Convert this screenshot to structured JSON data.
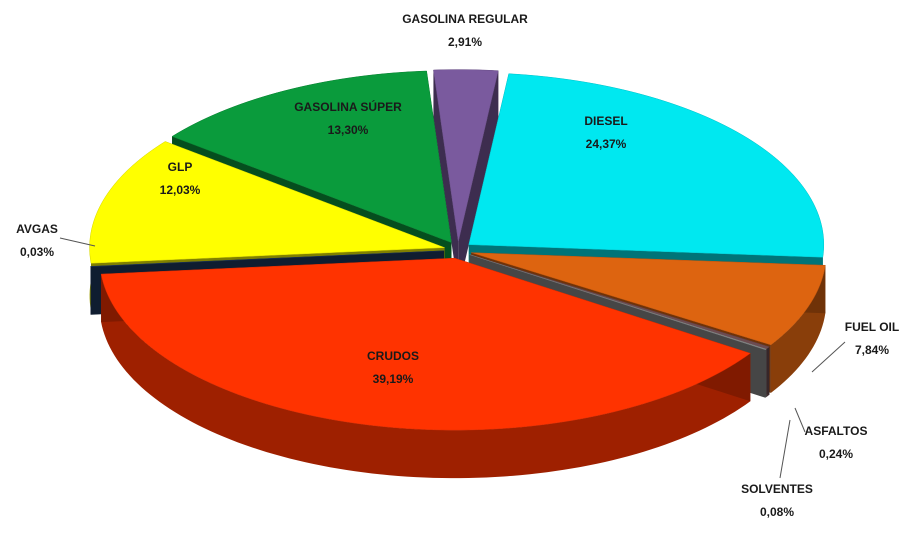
{
  "chart_data": {
    "type": "pie",
    "categories": [
      "GASOLINA REGULAR",
      "DIESEL",
      "FUEL OIL",
      "ASFALTOS",
      "SOLVENTES",
      "CRUDOS",
      "AVGAS",
      "GLP",
      "GASOLINA SÚPER"
    ],
    "values": [
      2.91,
      24.37,
      7.84,
      0.24,
      0.08,
      39.19,
      0.03,
      12.03,
      13.3
    ],
    "value_labels": [
      "2,91%",
      "24,37%",
      "7,84%",
      "0,24%",
      "0,08%",
      "39,19%",
      "0,03%",
      "12,03%",
      "13,30%"
    ],
    "colors": [
      "#7a5a9e",
      "#00e8f0",
      "#dd6410",
      "#6e4b50",
      "#8c8c8c",
      "#ff3300",
      "#1e3a60",
      "#ffff00",
      "#0a9b3c"
    ]
  }
}
